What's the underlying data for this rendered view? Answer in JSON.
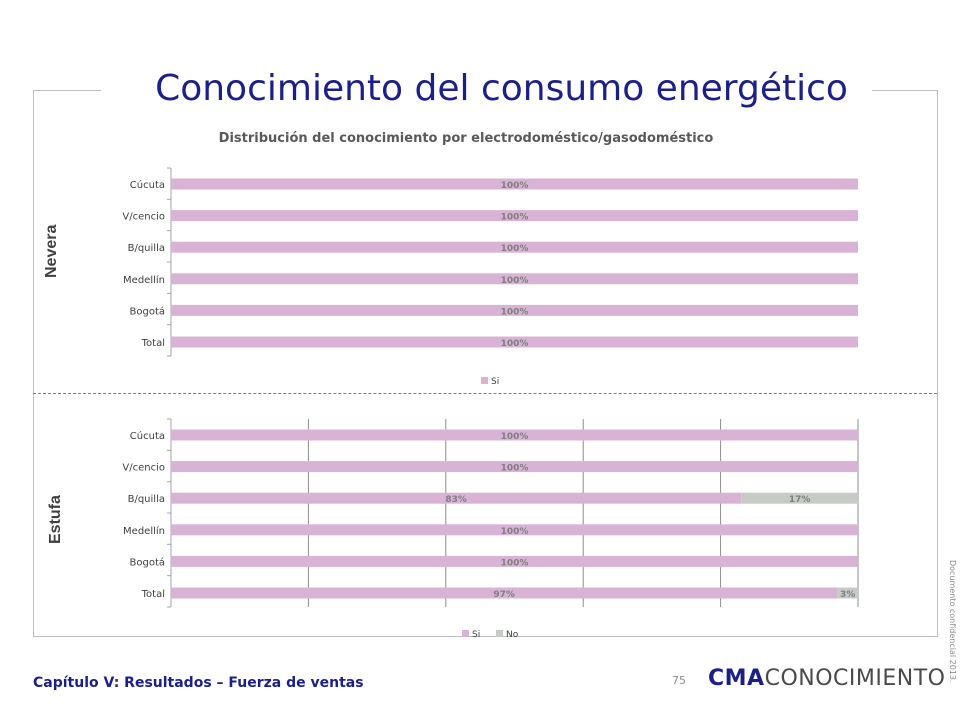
{
  "slide": {
    "title": "Conocimiento del consumo energético",
    "footer": "Capítulo V: Resultados – Fuerza de ventas",
    "page_number": "75",
    "logo_bold": "CMA",
    "logo_rest": "CONOCIMIENTO",
    "side_note": "Documento confidencial 2013."
  },
  "colors": {
    "si": "#d8b3d6",
    "no": "#c6ccc5",
    "title": "#1b1f8a"
  },
  "chart_data": [
    {
      "type": "bar",
      "orientation": "horizontal",
      "stacked": true,
      "title": "Distribución del conocimiento por electrodoméstico/gasodoméstico",
      "section": "Nevera",
      "categories": [
        "Cúcuta",
        "V/cencio",
        "B/quilla",
        "Medellín",
        "Bogotá",
        "Total"
      ],
      "series": [
        {
          "name": "Si",
          "values": [
            100,
            100,
            100,
            100,
            100,
            100
          ],
          "labels": [
            "100%",
            "100%",
            "100%",
            "100%",
            "100%",
            "100%"
          ]
        }
      ],
      "xlim": [
        0,
        100
      ],
      "grid": false,
      "legend": "bottom"
    },
    {
      "type": "bar",
      "orientation": "horizontal",
      "stacked": true,
      "section": "Estufa",
      "categories": [
        "Cúcuta",
        "V/cencio",
        "B/quilla",
        "Medellín",
        "Bogotá",
        "Total"
      ],
      "series": [
        {
          "name": "Si",
          "values": [
            100,
            100,
            83,
            100,
            100,
            97
          ],
          "labels": [
            "100%",
            "100%",
            "83%",
            "100%",
            "100%",
            "97%"
          ]
        },
        {
          "name": "No",
          "values": [
            0,
            0,
            17,
            0,
            0,
            3
          ],
          "labels": [
            "",
            "",
            "17%",
            "",
            "",
            "3%"
          ]
        }
      ],
      "xlim": [
        0,
        100
      ],
      "grid": true,
      "legend": "bottom"
    }
  ]
}
